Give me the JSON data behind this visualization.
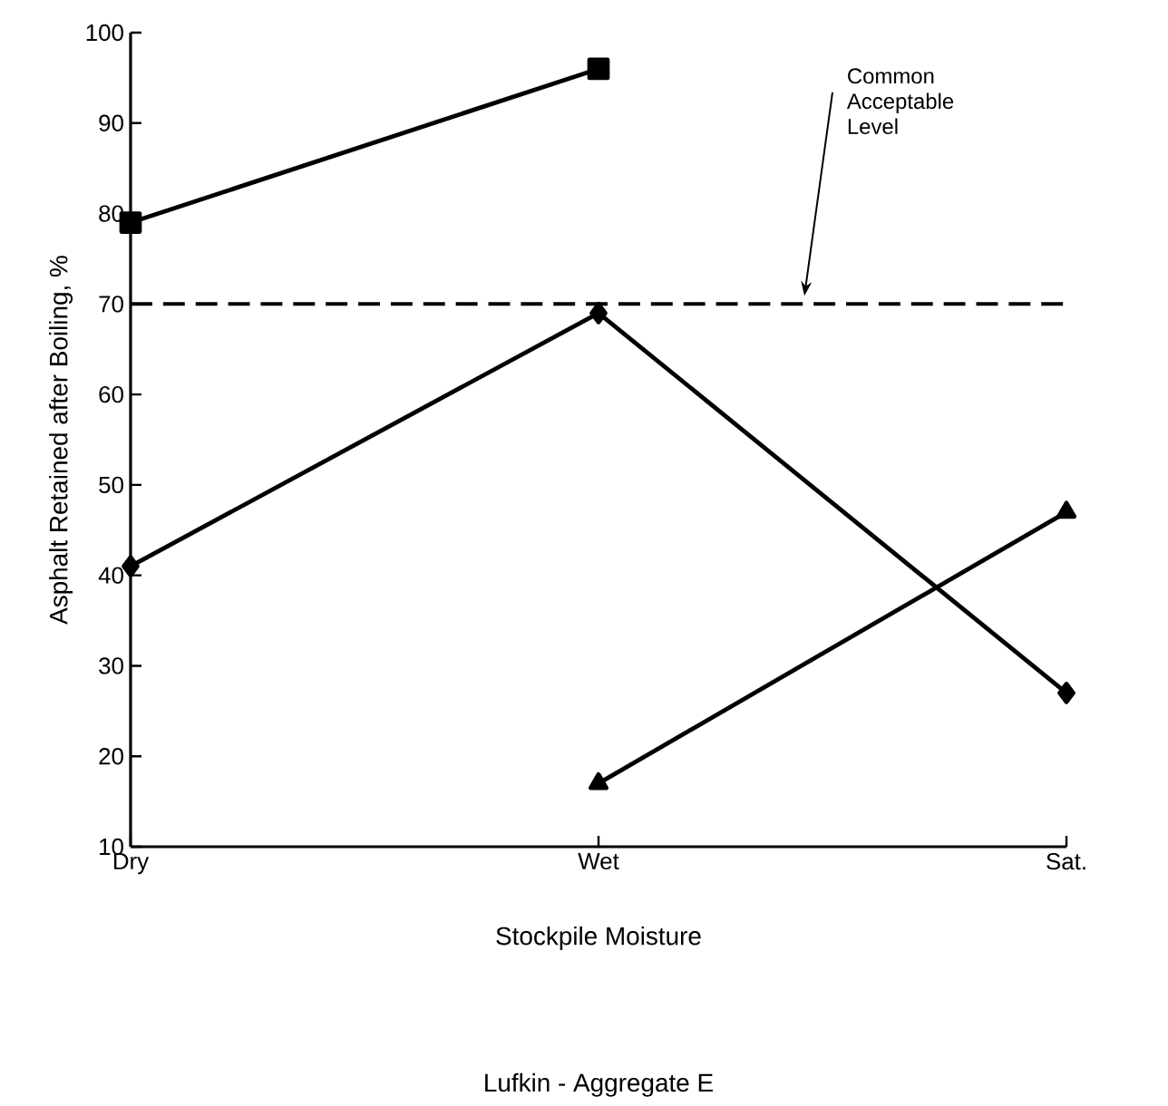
{
  "chart_data": {
    "type": "line",
    "title": "Lufkin - Aggregate E",
    "xlabel": "Stockpile Moisture",
    "ylabel": "Asphalt Retained after Boiling, %",
    "categories": [
      "Dry",
      "Wet",
      "Sat."
    ],
    "ylim": [
      10,
      100
    ],
    "yticks": [
      10,
      20,
      30,
      40,
      50,
      60,
      70,
      80,
      90,
      100
    ],
    "grid": false,
    "series": [
      {
        "color": "#000000",
        "marker": "square",
        "values": [
          79,
          96,
          null
        ]
      },
      {
        "color": "#000000",
        "marker": "diamond",
        "values": [
          41,
          69,
          27
        ]
      },
      {
        "color": "#000000",
        "marker": "triangle",
        "values": [
          null,
          17,
          47
        ]
      }
    ],
    "ref_lines": [
      {
        "axis": "y",
        "value": 70,
        "label": "Common Acceptable Level",
        "color": "#000000",
        "line_style": "dashed"
      }
    ]
  }
}
